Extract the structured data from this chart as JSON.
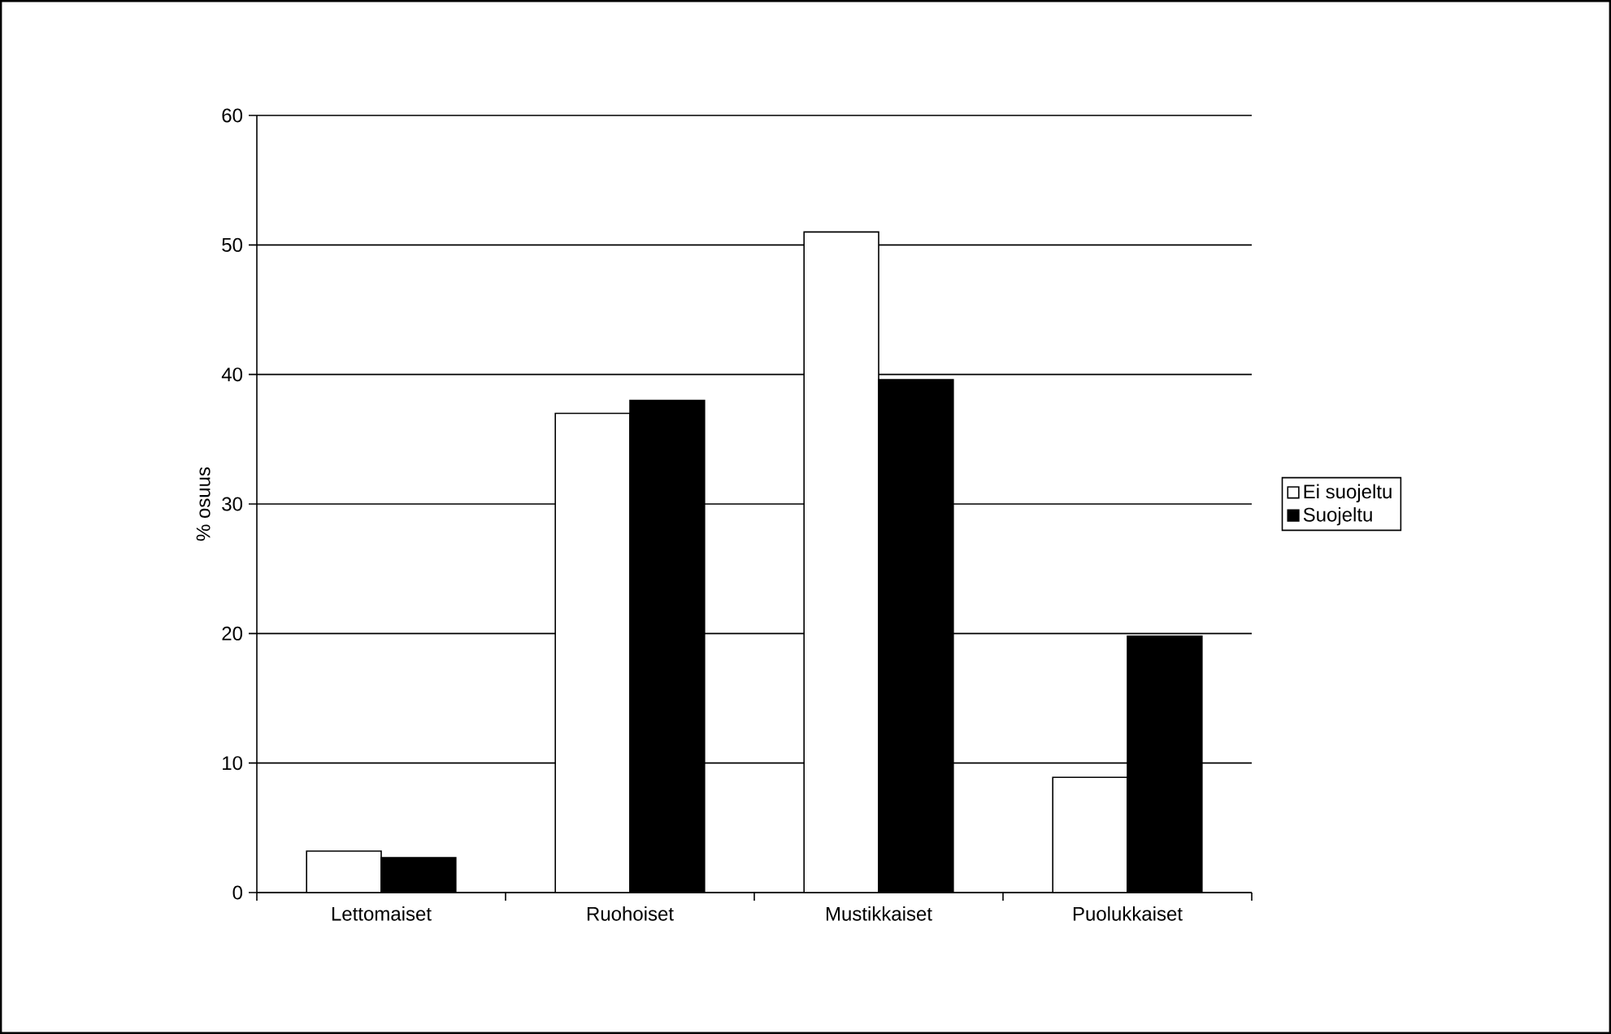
{
  "chart_data": {
    "type": "bar",
    "ylabel": "% osuus",
    "categories": [
      "Lettomaiset",
      "Ruohoiset",
      "Mustikkaiset",
      "Puolukkaiset"
    ],
    "series": [
      {
        "name": "Ei suojeltu",
        "color": "#ffffff",
        "values": [
          3.2,
          37,
          51,
          8.9
        ]
      },
      {
        "name": "Suojeltu",
        "color": "#000000",
        "values": [
          2.7,
          38,
          39.6,
          19.8
        ]
      }
    ],
    "ylim": [
      0,
      60
    ],
    "yticks": [
      0,
      10,
      20,
      30,
      40,
      50,
      60
    ],
    "grid": "y",
    "legend": "right"
  }
}
